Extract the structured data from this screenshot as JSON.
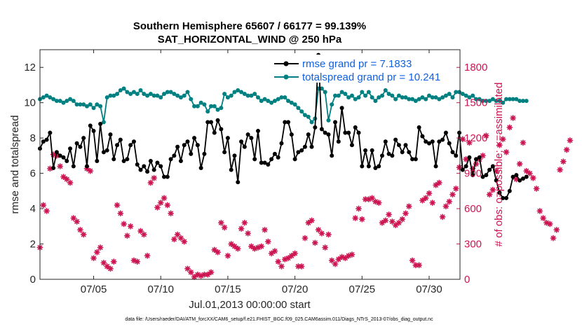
{
  "chart_data": {
    "type": "line",
    "title": "Southern Hemisphere 65607 / 66177 = 99.139%",
    "subtitle": "SAT_HORIZONTAL_WIND @ 250 hPa",
    "xlabel": "Jul.01,2013 00:00:00 start",
    "ylabel": "rmse and totalspread",
    "ylabel_right": "# of obs: o=possible; ×=assimilated",
    "footnote": "data file: /Users/raeder/DAI/ATM_forcXX/CAM6_setup/f.e21.FHIST_BGC.f09_025.CAM6assim.011/Diags_NTrS_2013-07/obs_diag_output.nc",
    "xlim": [
      1,
      32.3
    ],
    "ylim": [
      0,
      13
    ],
    "ylim_right": [
      0,
      1950
    ],
    "x_ticks": [
      5,
      10,
      15,
      20,
      25,
      30
    ],
    "x_tick_labels": [
      "07/05",
      "07/10",
      "07/15",
      "07/20",
      "07/25",
      "07/30"
    ],
    "y_ticks": [
      0,
      2,
      4,
      6,
      8,
      10,
      12
    ],
    "y_tick_labels": [
      "0",
      "2",
      "4",
      "6",
      "8",
      "10",
      "12"
    ],
    "y_right_ticks": [
      0,
      300,
      600,
      900,
      1200,
      1500,
      1800
    ],
    "y_right_tick_labels": [
      "0",
      "300",
      "600",
      "900",
      "1200",
      "1500",
      "1800"
    ],
    "legend": [
      {
        "label": "rmse grand pr = 7.1833",
        "color": "#000000"
      },
      {
        "label": "totalspread grand pr = 10.241",
        "color": "#008080"
      }
    ],
    "series": [
      {
        "name": "rmse",
        "color": "#000000",
        "axis": "left",
        "x_start": 1.0,
        "x_step": 0.25,
        "values": [
          7.4,
          7.8,
          7.9,
          8.3,
          6.3,
          7.2,
          7.0,
          6.9,
          6.7,
          7.4,
          6.4,
          7.7,
          7.5,
          8.0,
          6.4,
          8.7,
          8.4,
          6.7,
          8.8,
          7.2,
          7.3,
          8.2,
          6.8,
          7.6,
          7.9,
          6.7,
          6.8,
          7.6,
          7.8,
          6.5,
          6.2,
          6.4,
          6.1,
          6.7,
          6.2,
          6.6,
          6.4,
          5.8,
          5.8,
          6.8,
          7.0,
          7.5,
          6.7,
          7.6,
          7.8,
          7.1,
          8.0,
          7.6,
          6.3,
          7.1,
          8.9,
          8.9,
          8.3,
          9.0,
          8.5,
          7.2,
          8.0,
          6.2,
          7.0,
          5.5,
          7.8,
          7.5,
          8.2,
          8.0,
          6.8,
          8.4,
          6.6,
          6.6,
          6.5,
          6.8,
          7.1,
          6.9,
          7.7,
          8.9,
          8.9,
          8.2,
          6.8,
          7.2,
          7.3,
          7.5,
          8.2,
          7.5,
          8.6,
          12.7,
          8.5,
          8.3,
          8.2,
          7.0,
          8.9,
          7.8,
          9.7,
          8.3,
          8.3,
          7.6,
          8.6,
          8.3,
          6.4,
          7.3,
          6.4,
          7.3,
          6.3,
          6.4,
          7.0,
          7.8,
          7.1,
          7.0,
          7.9,
          7.6,
          7.2,
          7.6,
          7.2,
          6.8,
          6.8,
          8.6,
          8.1,
          7.8,
          7.7,
          7.8,
          6.4,
          7.8,
          7.9,
          8.3,
          7.7,
          7.2,
          7.0,
          8.3,
          6.2,
          6.4,
          6.9,
          5.9,
          6.8,
          6.9,
          5.8,
          5.9,
          6.2,
          6.4,
          5.6,
          4.9,
          4.6,
          4.6,
          5.0,
          5.8,
          5.9,
          5.6,
          5.7,
          5.8
        ]
      },
      {
        "name": "totalspread",
        "color": "#008080",
        "axis": "left",
        "x_start": 1.0,
        "x_step": 0.25,
        "values": [
          10.2,
          10.3,
          10.4,
          10.3,
          10.2,
          10.1,
          10.1,
          10.0,
          10.1,
          10.2,
          10.1,
          9.9,
          9.9,
          9.9,
          9.8,
          9.9,
          9.7,
          9.9,
          9.8,
          8.9,
          10.3,
          10.4,
          10.4,
          10.5,
          10.7,
          10.8,
          10.6,
          10.5,
          10.6,
          10.5,
          10.7,
          10.5,
          10.4,
          10.5,
          10.4,
          10.4,
          10.3,
          10.5,
          10.6,
          10.6,
          10.5,
          10.4,
          10.3,
          10.4,
          10.6,
          10.2,
          9.8,
          9.8,
          10.0,
          9.9,
          9.5,
          9.8,
          9.8,
          9.6,
          9.7,
          10.5,
          10.3,
          10.4,
          10.6,
          10.7,
          10.6,
          10.5,
          10.4,
          10.4,
          10.5,
          10.3,
          10.1,
          10.2,
          10.1,
          10.0,
          10.1,
          10.2,
          10.3,
          10.3,
          10.1,
          10.0,
          9.9,
          9.7,
          9.5,
          9.3,
          9.2,
          8.9,
          9.1,
          10.8,
          10.8,
          10.6,
          9.0,
          9.9,
          10.4,
          10.4,
          10.6,
          10.5,
          10.3,
          10.4,
          10.2,
          10.3,
          10.6,
          10.4,
          10.6,
          10.3,
          10.1,
          10.3,
          10.4,
          10.7,
          10.5,
          10.4,
          10.2,
          10.4,
          10.3,
          10.3,
          10.2,
          10.2,
          10.1,
          10.2,
          10.3,
          10.2,
          10.4,
          10.3,
          10.3,
          10.2,
          10.3,
          10.4,
          10.5,
          10.3,
          10.6,
          10.6,
          10.5,
          10.4,
          10.3,
          10.4,
          10.2,
          10.2,
          10.1,
          10.1,
          10.1,
          10.2,
          10.1,
          10.1,
          10.0,
          10.2,
          10.2,
          10.2,
          10.2,
          10.1,
          10.1,
          10.1
        ]
      },
      {
        "name": "assimilated",
        "color": "#cc1450",
        "axis": "right",
        "marker": "asterisk",
        "x_start": 1.0,
        "x_step": 0.25,
        "values": [
          270,
          630,
          580,
          940,
          1060,
          1050,
          960,
          870,
          850,
          820,
          520,
          490,
          420,
          380,
          940,
          920,
          180,
          230,
          270,
          140,
          110,
          90,
          150,
          630,
          560,
          470,
          370,
          450,
          160,
          150,
          410,
          380,
          200,
          820,
          860,
          610,
          650,
          690,
          630,
          560,
          340,
          380,
          350,
          320,
          90,
          60,
          20,
          40,
          30,
          40,
          40,
          60,
          250,
          230,
          480,
          440,
          200,
          300,
          280,
          260,
          430,
          480,
          390,
          280,
          260,
          270,
          280,
          420,
          320,
          220,
          240,
          150,
          110,
          170,
          180,
          200,
          220,
          110,
          110,
          350,
          480,
          500,
          310,
          420,
          390,
          270,
          380,
          160,
          130,
          170,
          190,
          180,
          200,
          210,
          520,
          600,
          510,
          680,
          680,
          690,
          660,
          650,
          480,
          500,
          550,
          490,
          460,
          480,
          510,
          560,
          620,
          160,
          120,
          120,
          670,
          690,
          730,
          650,
          800,
          820,
          530,
          620,
          660,
          720,
          770,
          950,
          1190,
          1020,
          1160,
          940,
          980,
          1020,
          1050,
          1220,
          720,
          760,
          920,
          1140,
          1190,
          1080,
          1290,
          1370,
          850,
          980,
          1160,
          920,
          900,
          860,
          770,
          580,
          520,
          480,
          470,
          350,
          420,
          930,
          1000,
          1100,
          1180
        ]
      }
    ]
  }
}
